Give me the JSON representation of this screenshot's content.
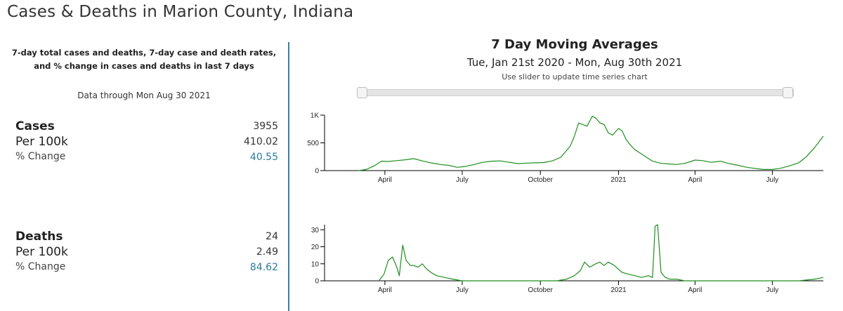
{
  "page": {
    "title": "Cases & Deaths in Marion County, Indiana"
  },
  "summary": {
    "note_line1": "7-day total cases and deaths, 7-day case and death rates,",
    "note_line2": "and % change in cases and deaths in last 7 days",
    "data_through": "Data through Mon Aug 30 2021",
    "cases": {
      "label": "Cases",
      "value": "3955",
      "per100k_label": "Per 100k",
      "per100k": "410.02",
      "change_label": "% Change",
      "change": "40.55"
    },
    "deaths": {
      "label": "Deaths",
      "value": "24",
      "per100k_label": "Per 100k",
      "per100k": "2.49",
      "change_label": "% Change",
      "change": "84.62"
    }
  },
  "header": {
    "title": "7 Day Moving Averages",
    "date_range": "Tue, Jan 21st 2020 - Mon, Aug 30th 2021",
    "slider_hint": "Use slider to update time series chart"
  },
  "colors": {
    "line": "#1f8f1f",
    "accent": "#3a7fa0"
  },
  "chart_data": [
    {
      "type": "line",
      "title": "7 Day Moving Averages - Cases",
      "x_range": [
        "2020-01-21",
        "2021-08-30"
      ],
      "x_ticks": [
        "April",
        "July",
        "October",
        "2021",
        "April",
        "July"
      ],
      "x_tick_dates": [
        "2020-04-01",
        "2020-07-01",
        "2020-10-01",
        "2021-01-01",
        "2021-04-01",
        "2021-07-01"
      ],
      "ylim": [
        0,
        1000
      ],
      "y_ticks": [
        0,
        500,
        1000
      ],
      "y_tick_labels": [
        "0",
        "500",
        "1K"
      ],
      "series": [
        {
          "name": "Cases",
          "x": [
            "2020-03-01",
            "2020-03-10",
            "2020-03-20",
            "2020-03-28",
            "2020-04-05",
            "2020-04-15",
            "2020-04-25",
            "2020-05-05",
            "2020-05-15",
            "2020-05-25",
            "2020-06-05",
            "2020-06-15",
            "2020-06-25",
            "2020-07-05",
            "2020-07-15",
            "2020-07-25",
            "2020-08-05",
            "2020-08-15",
            "2020-08-25",
            "2020-09-05",
            "2020-09-15",
            "2020-09-25",
            "2020-10-05",
            "2020-10-15",
            "2020-10-25",
            "2020-11-05",
            "2020-11-10",
            "2020-11-15",
            "2020-11-20",
            "2020-11-25",
            "2020-12-01",
            "2020-12-05",
            "2020-12-10",
            "2020-12-15",
            "2020-12-20",
            "2020-12-25",
            "2021-01-01",
            "2021-01-05",
            "2021-01-10",
            "2021-01-15",
            "2021-01-20",
            "2021-02-01",
            "2021-02-10",
            "2021-02-20",
            "2021-03-01",
            "2021-03-10",
            "2021-03-20",
            "2021-04-01",
            "2021-04-10",
            "2021-04-20",
            "2021-05-01",
            "2021-05-10",
            "2021-05-20",
            "2021-06-01",
            "2021-06-10",
            "2021-06-20",
            "2021-07-01",
            "2021-07-10",
            "2021-07-20",
            "2021-08-01",
            "2021-08-10",
            "2021-08-20",
            "2021-08-30"
          ],
          "values": [
            0,
            20,
            90,
            170,
            165,
            180,
            195,
            215,
            175,
            140,
            110,
            95,
            60,
            75,
            110,
            150,
            170,
            175,
            150,
            125,
            135,
            140,
            145,
            175,
            240,
            440,
            620,
            860,
            830,
            800,
            980,
            950,
            860,
            830,
            680,
            640,
            760,
            720,
            560,
            460,
            380,
            260,
            170,
            130,
            120,
            110,
            130,
            190,
            180,
            150,
            170,
            130,
            100,
            60,
            40,
            20,
            20,
            40,
            80,
            140,
            250,
            420,
            620
          ]
        }
      ]
    },
    {
      "type": "line",
      "title": "7 Day Moving Averages - Deaths",
      "x_range": [
        "2020-01-21",
        "2021-08-30"
      ],
      "x_ticks": [
        "April",
        "July",
        "October",
        "2021",
        "April",
        "July"
      ],
      "x_tick_dates": [
        "2020-04-01",
        "2020-07-01",
        "2020-10-01",
        "2021-01-01",
        "2021-04-01",
        "2021-07-01"
      ],
      "ylim": [
        0,
        33
      ],
      "y_ticks": [
        0,
        10,
        20,
        30
      ],
      "y_tick_labels": [
        "0",
        "10",
        "20",
        "30"
      ],
      "series": [
        {
          "name": "Deaths",
          "x": [
            "2020-03-25",
            "2020-03-31",
            "2020-04-05",
            "2020-04-10",
            "2020-04-15",
            "2020-04-18",
            "2020-04-22",
            "2020-04-26",
            "2020-05-01",
            "2020-05-05",
            "2020-05-10",
            "2020-05-15",
            "2020-05-20",
            "2020-05-25",
            "2020-06-01",
            "2020-06-10",
            "2020-06-20",
            "2020-07-01",
            "2020-08-01",
            "2020-09-01",
            "2020-10-01",
            "2020-10-20",
            "2020-11-01",
            "2020-11-10",
            "2020-11-17",
            "2020-11-22",
            "2020-11-28",
            "2020-12-05",
            "2020-12-10",
            "2020-12-15",
            "2020-12-20",
            "2020-12-27",
            "2021-01-05",
            "2021-01-12",
            "2021-01-20",
            "2021-01-28",
            "2021-02-05",
            "2021-02-10",
            "2021-02-13",
            "2021-02-16",
            "2021-02-20",
            "2021-02-25",
            "2021-03-02",
            "2021-03-10",
            "2021-03-20",
            "2021-04-01",
            "2021-05-01",
            "2021-06-01",
            "2021-07-01",
            "2021-08-01",
            "2021-08-20",
            "2021-08-30"
          ],
          "values": [
            0,
            4,
            12,
            14,
            8,
            3,
            21,
            12,
            9,
            9,
            8,
            10,
            7,
            5,
            3,
            2,
            1,
            0,
            0,
            0,
            0,
            0,
            1,
            3,
            6,
            11,
            8,
            10,
            11,
            9,
            11,
            9,
            5,
            4,
            3,
            2,
            3,
            2,
            32,
            33,
            5,
            2,
            1,
            1,
            0,
            0,
            0,
            0,
            0,
            0,
            1,
            2
          ]
        }
      ]
    }
  ]
}
